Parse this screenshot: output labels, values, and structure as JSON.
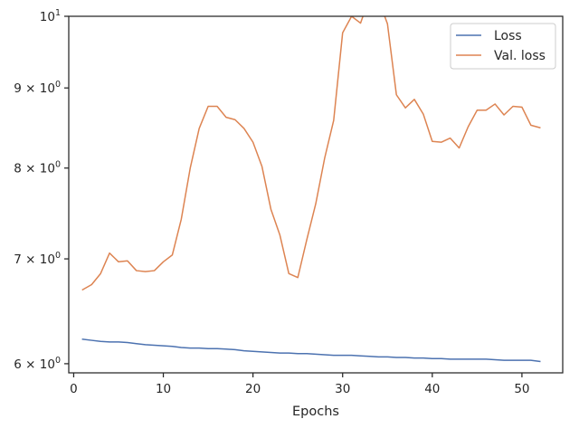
{
  "chart_data": {
    "type": "line",
    "xlabel": "Epochs",
    "ylabel": "",
    "y_scale": "log",
    "xlim": [
      -0.55,
      54.55
    ],
    "ylim": [
      5.92,
      10.0
    ],
    "grid": false,
    "legend_position": "top-right",
    "x_ticks": [
      0,
      10,
      20,
      30,
      40,
      50
    ],
    "y_ticks": [
      {
        "value": 6,
        "label": "6 × 10",
        "exp": "0"
      },
      {
        "value": 7,
        "label": "7 × 10",
        "exp": "0"
      },
      {
        "value": 8,
        "label": "8 × 10",
        "exp": "0"
      },
      {
        "value": 9,
        "label": "9 × 10",
        "exp": "0"
      },
      {
        "value": 10,
        "label": "10",
        "exp": "1"
      }
    ],
    "x": [
      1,
      2,
      3,
      4,
      5,
      6,
      7,
      8,
      9,
      10,
      11,
      12,
      13,
      14,
      15,
      16,
      17,
      18,
      19,
      20,
      21,
      22,
      23,
      24,
      25,
      26,
      27,
      28,
      29,
      30,
      31,
      32,
      33,
      34,
      35,
      36,
      37,
      38,
      39,
      40,
      41,
      42,
      43,
      44,
      45,
      46,
      47,
      48,
      49,
      50,
      51,
      52
    ],
    "series": [
      {
        "name": "Loss",
        "color": "#4c72b0",
        "values": [
          6.22,
          6.21,
          6.2,
          6.195,
          6.195,
          6.19,
          6.18,
          6.17,
          6.165,
          6.16,
          6.155,
          6.145,
          6.14,
          6.14,
          6.135,
          6.135,
          6.13,
          6.125,
          6.115,
          6.11,
          6.105,
          6.1,
          6.095,
          6.095,
          6.09,
          6.09,
          6.085,
          6.08,
          6.075,
          6.075,
          6.075,
          6.07,
          6.065,
          6.06,
          6.06,
          6.055,
          6.055,
          6.05,
          6.05,
          6.045,
          6.045,
          6.04,
          6.04,
          6.04,
          6.04,
          6.04,
          6.035,
          6.03,
          6.03,
          6.03,
          6.03,
          6.02
        ]
      },
      {
        "name": "Val. loss",
        "color": "#dd8452",
        "values": [
          6.69,
          6.74,
          6.85,
          7.06,
          6.97,
          6.98,
          6.88,
          6.87,
          6.88,
          6.97,
          7.04,
          7.42,
          8.0,
          8.48,
          8.76,
          8.76,
          8.62,
          8.59,
          8.48,
          8.31,
          8.02,
          7.53,
          7.25,
          6.85,
          6.81,
          7.2,
          7.59,
          8.12,
          8.58,
          9.76,
          10.0,
          9.9,
          10.28,
          10.25,
          9.89,
          8.91,
          8.74,
          8.85,
          8.66,
          8.32,
          8.31,
          8.36,
          8.24,
          8.5,
          8.71,
          8.71,
          8.79,
          8.65,
          8.76,
          8.75,
          8.52,
          8.49
        ]
      }
    ]
  }
}
